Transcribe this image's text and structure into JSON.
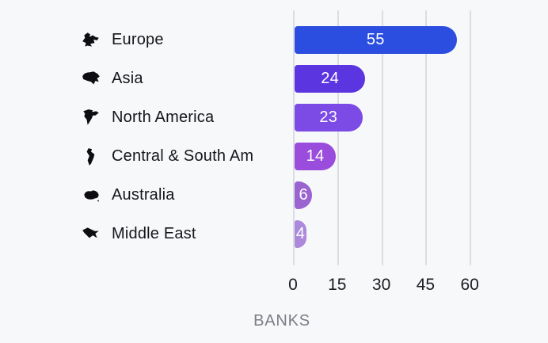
{
  "chart_data": {
    "type": "bar",
    "orientation": "horizontal",
    "title": "",
    "xlabel": "BANKS",
    "ylabel": "",
    "categories": [
      "Europe",
      "Asia",
      "North America",
      "Central & South Am",
      "Australia",
      "Middle East"
    ],
    "values": [
      55,
      24,
      23,
      14,
      6,
      4
    ],
    "bar_colors": [
      "#2b4ee0",
      "#5a35e0",
      "#7c4ae4",
      "#9a4ddd",
      "#9a63d0",
      "#ac8adb"
    ],
    "icons": [
      "europe-icon",
      "asia-icon",
      "north-america-icon",
      "central-south-america-icon",
      "australia-icon",
      "middle-east-icon"
    ],
    "value_label_color": "#ffffff",
    "xticks": [
      0,
      15,
      30,
      45,
      60
    ],
    "xlim": [
      0,
      60
    ],
    "grid": true,
    "legend_position": "none",
    "background_color": "#f7f8fa",
    "gridline_color": "#dcdde3"
  }
}
